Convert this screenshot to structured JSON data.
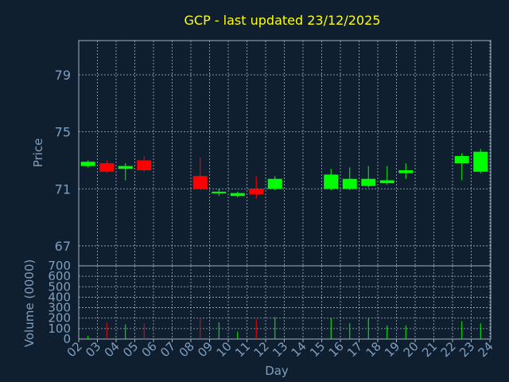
{
  "chart_data": {
    "type": "candlestick",
    "title": "GCP - last updated 23/12/2025",
    "xlabel": "Day",
    "price_ylabel": "Price",
    "volume_ylabel": "Volume (0000)",
    "x_ticks": [
      "02",
      "03",
      "04",
      "05",
      "06",
      "07",
      "08",
      "09",
      "10",
      "11",
      "12",
      "13",
      "14",
      "15",
      "16",
      "17",
      "18",
      "19",
      "20",
      "21",
      "22",
      "23",
      "24"
    ],
    "price_ticks": [
      67,
      71,
      75,
      79
    ],
    "price_ylim": [
      65.6,
      81.4
    ],
    "volume_ticks": [
      0,
      100,
      200,
      300,
      400,
      500,
      600,
      700
    ],
    "volume_ylim": [
      0,
      700
    ],
    "colors": {
      "up": "#00ff00",
      "down": "#ff0000",
      "title": "#ffff00",
      "background": "#0f1f30"
    },
    "candles": [
      {
        "day": "02",
        "open": 72.6,
        "close": 72.9,
        "high": 73.0,
        "low": 72.5
      },
      {
        "day": "03",
        "open": 72.8,
        "close": 72.2,
        "high": 73.0,
        "low": 72.1
      },
      {
        "day": "04",
        "open": 72.4,
        "close": 72.6,
        "high": 72.8,
        "low": 71.6
      },
      {
        "day": "05",
        "open": 73.0,
        "close": 72.3,
        "high": 73.3,
        "low": 72.2
      },
      {
        "day": "08",
        "open": 71.9,
        "close": 71.0,
        "high": 73.2,
        "low": 70.9
      },
      {
        "day": "09",
        "open": 70.7,
        "close": 70.8,
        "high": 71.0,
        "low": 70.5
      },
      {
        "day": "10",
        "open": 70.5,
        "close": 70.7,
        "high": 70.8,
        "low": 70.4
      },
      {
        "day": "11",
        "open": 71.0,
        "close": 70.6,
        "high": 71.9,
        "low": 70.3
      },
      {
        "day": "12",
        "open": 71.0,
        "close": 71.7,
        "high": 71.9,
        "low": 70.9
      },
      {
        "day": "15",
        "open": 71.0,
        "close": 72.0,
        "high": 72.4,
        "low": 70.9
      },
      {
        "day": "16",
        "open": 71.0,
        "close": 71.7,
        "high": 72.5,
        "low": 70.9
      },
      {
        "day": "17",
        "open": 71.2,
        "close": 71.7,
        "high": 72.6,
        "low": 71.1
      },
      {
        "day": "18",
        "open": 71.4,
        "close": 71.6,
        "high": 72.6,
        "low": 71.3
      },
      {
        "day": "19",
        "open": 72.1,
        "close": 72.3,
        "high": 72.8,
        "low": 71.7
      },
      {
        "day": "22",
        "open": 72.8,
        "close": 73.3,
        "high": 73.5,
        "low": 71.6
      },
      {
        "day": "23",
        "open": 72.2,
        "close": 73.6,
        "high": 73.8,
        "low": 72.1
      }
    ],
    "volume": [
      {
        "day": "02",
        "value": 30,
        "dir": "up"
      },
      {
        "day": "03",
        "value": 160,
        "dir": "down"
      },
      {
        "day": "04",
        "value": 140,
        "dir": "up"
      },
      {
        "day": "05",
        "value": 150,
        "dir": "down"
      },
      {
        "day": "08",
        "value": 200,
        "dir": "down"
      },
      {
        "day": "09",
        "value": 160,
        "dir": "up"
      },
      {
        "day": "10",
        "value": 70,
        "dir": "up"
      },
      {
        "day": "11",
        "value": 190,
        "dir": "down"
      },
      {
        "day": "12",
        "value": 210,
        "dir": "up"
      },
      {
        "day": "15",
        "value": 200,
        "dir": "up"
      },
      {
        "day": "16",
        "value": 150,
        "dir": "up"
      },
      {
        "day": "17",
        "value": 200,
        "dir": "up"
      },
      {
        "day": "18",
        "value": 130,
        "dir": "up"
      },
      {
        "day": "19",
        "value": 130,
        "dir": "up"
      },
      {
        "day": "22",
        "value": 170,
        "dir": "up"
      },
      {
        "day": "23",
        "value": 150,
        "dir": "up"
      }
    ]
  }
}
